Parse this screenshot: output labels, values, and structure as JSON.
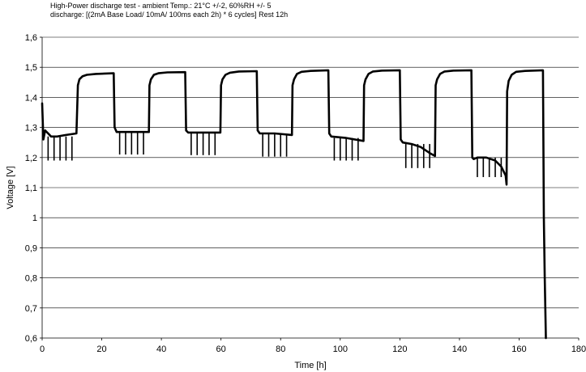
{
  "chart_data": {
    "type": "line",
    "title": "High-Power discharge test   -   ambient Temp.: 21°C +/-2, 60%RH +/- 5",
    "subtitle": "discharge: [(2mA Base Load/ 10mA/ 100ms each 2h) * 6 cycles] Rest 12h",
    "xlabel": "Time [h]",
    "ylabel": "Voltage [V]",
    "xlim": [
      0,
      180
    ],
    "ylim": [
      0.6,
      1.6
    ],
    "xticks": [
      0,
      20,
      40,
      60,
      80,
      100,
      120,
      140,
      160,
      180
    ],
    "yticks": [
      "0,6",
      "0,7",
      "0,8",
      "0,9",
      "1",
      "1,1",
      "1,2",
      "1,3",
      "1,4",
      "1,5",
      "1,6"
    ],
    "grid": "horizontal",
    "series": [
      {
        "color": "#000000",
        "x": [
          0,
          0.4,
          1,
          2,
          3,
          5,
          8,
          11.5,
          12,
          12.5,
          13.5,
          15,
          18,
          24,
          24.3,
          25,
          30,
          35.8,
          36,
          36.5,
          37.5,
          39,
          42,
          48,
          48.3,
          49,
          54,
          59.8,
          60,
          60.5,
          61.5,
          63,
          66,
          72,
          72.3,
          73,
          78,
          83.8,
          84,
          84.5,
          85.5,
          87,
          90,
          96,
          96.3,
          97,
          102,
          107.8,
          108,
          108.5,
          109.5,
          111,
          114,
          120,
          120.3,
          121,
          124,
          127,
          130,
          131.8,
          132,
          132.5,
          133.5,
          135,
          138,
          144,
          144.3,
          144.8,
          146,
          149,
          152,
          154,
          155.5,
          155.8,
          156,
          156.5,
          157.5,
          159,
          162,
          168,
          168.3,
          168.6,
          169
        ],
        "y": [
          1.38,
          1.26,
          1.29,
          1.28,
          1.27,
          1.27,
          1.275,
          1.28,
          1.44,
          1.46,
          1.47,
          1.475,
          1.478,
          1.48,
          1.3,
          1.285,
          1.285,
          1.285,
          1.44,
          1.46,
          1.475,
          1.48,
          1.483,
          1.484,
          1.29,
          1.283,
          1.283,
          1.283,
          1.44,
          1.46,
          1.475,
          1.482,
          1.486,
          1.487,
          1.29,
          1.28,
          1.28,
          1.275,
          1.44,
          1.46,
          1.478,
          1.485,
          1.488,
          1.49,
          1.28,
          1.27,
          1.265,
          1.255,
          1.44,
          1.46,
          1.478,
          1.486,
          1.489,
          1.49,
          1.26,
          1.25,
          1.245,
          1.235,
          1.215,
          1.205,
          1.44,
          1.46,
          1.478,
          1.486,
          1.489,
          1.49,
          1.2,
          1.195,
          1.2,
          1.2,
          1.19,
          1.17,
          1.14,
          1.11,
          1.42,
          1.455,
          1.475,
          1.485,
          1.488,
          1.49,
          1.0,
          0.8,
          0.6
        ]
      }
    ],
    "pulse_groups": [
      {
        "x": [
          2,
          4,
          6,
          8,
          10
        ],
        "base": 1.27,
        "drop": 0.08
      },
      {
        "x": [
          26,
          28,
          30,
          32,
          34
        ],
        "base": 1.285,
        "drop": 0.075
      },
      {
        "x": [
          50,
          52,
          54,
          56,
          58
        ],
        "base": 1.283,
        "drop": 0.075
      },
      {
        "x": [
          74,
          76,
          78,
          80,
          82
        ],
        "base": 1.278,
        "drop": 0.075
      },
      {
        "x": [
          98,
          100,
          102,
          104,
          106
        ],
        "base": 1.265,
        "drop": 0.075
      },
      {
        "x": [
          122,
          124,
          126,
          128,
          130
        ],
        "base": 1.245,
        "drop": 0.08
      },
      {
        "x": [
          146,
          148,
          150,
          152,
          154
        ],
        "base": 1.2,
        "drop": 0.065
      }
    ]
  }
}
